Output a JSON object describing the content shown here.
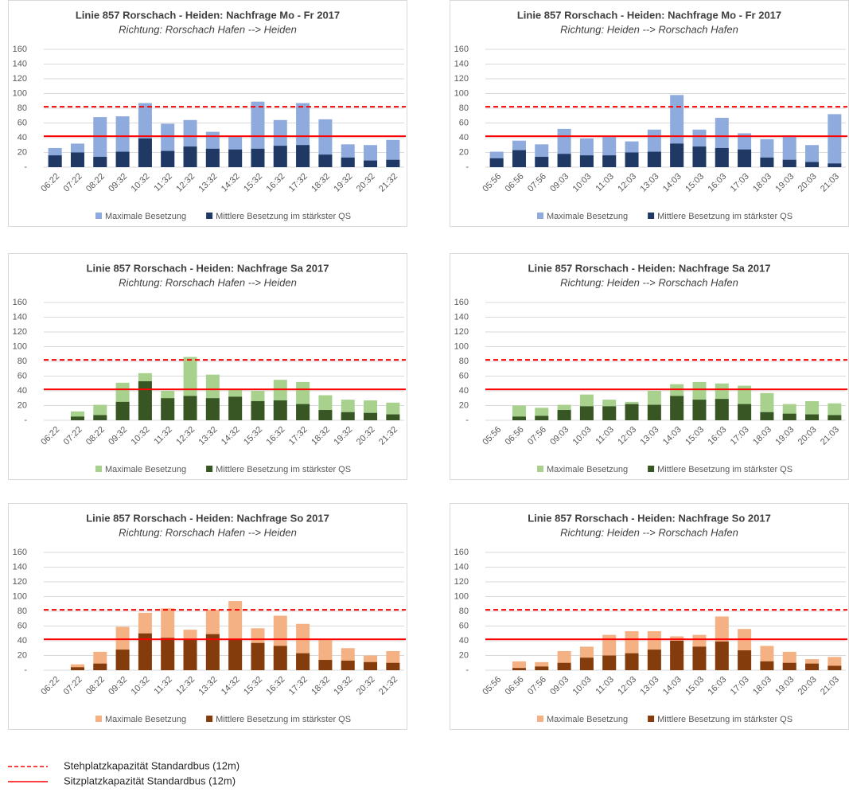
{
  "chart_data": [
    {
      "type": "bar",
      "title": "Linie 857 Rorschach - Heiden: Nachfrage Mo - Fr 2017",
      "subtitle": "Richtung: Rorschach Hafen --> Heiden",
      "categories": [
        "06:22",
        "07:22",
        "08:22",
        "09:32",
        "10:32",
        "11:32",
        "12:32",
        "13:32",
        "14:32",
        "15:32",
        "16:32",
        "17:32",
        "18:32",
        "19:32",
        "20:32",
        "21:32"
      ],
      "series": [
        {
          "name": "Maximale Besetzung",
          "color": "#8faadc",
          "values": [
            26,
            32,
            68,
            69,
            87,
            59,
            64,
            48,
            41,
            89,
            64,
            87,
            65,
            31,
            30,
            37
          ]
        },
        {
          "name": "Mittlere Besetzung im stärkster QS",
          "color": "#1f3864",
          "values": [
            16,
            20,
            14,
            21,
            39,
            22,
            28,
            25,
            24,
            25,
            29,
            30,
            17,
            13,
            9,
            10
          ]
        }
      ],
      "ylim": [
        0,
        160
      ],
      "yticks": [
        {
          "value": 0,
          "label": "-"
        },
        20,
        40,
        60,
        80,
        100,
        120,
        140,
        160
      ],
      "grid": true
    },
    {
      "type": "bar",
      "title": "Linie 857 Rorschach - Heiden: Nachfrage Mo - Fr 2017",
      "subtitle": "Richtung: Heiden --> Rorschach Hafen",
      "categories": [
        "05:56",
        "06:56",
        "07:56",
        "09:03",
        "10:03",
        "11:03",
        "12:03",
        "13:03",
        "14:03",
        "15:03",
        "16:03",
        "17:03",
        "18:03",
        "19:03",
        "20:03",
        "21:03"
      ],
      "series": [
        {
          "name": "Maximale Besetzung",
          "color": "#8faadc",
          "values": [
            21,
            36,
            31,
            52,
            39,
            41,
            35,
            51,
            98,
            51,
            67,
            46,
            38,
            43,
            30,
            72
          ]
        },
        {
          "name": "Mittlere Besetzung im stärkster QS",
          "color": "#1f3864",
          "values": [
            12,
            23,
            14,
            18,
            16,
            16,
            20,
            21,
            32,
            28,
            26,
            24,
            13,
            10,
            7,
            5
          ]
        }
      ],
      "ylim": [
        0,
        160
      ],
      "yticks": [
        {
          "value": 0,
          "label": "-"
        },
        20,
        40,
        60,
        80,
        100,
        120,
        140,
        160
      ],
      "grid": true
    },
    {
      "type": "bar",
      "title": "Linie 857 Rorschach - Heiden: Nachfrage Sa 2017",
      "subtitle": "Richtung: Rorschach Hafen --> Heiden",
      "categories": [
        "06:22",
        "07:22",
        "08:22",
        "09:32",
        "10:32",
        "11:32",
        "12:32",
        "13:32",
        "14:32",
        "15:32",
        "16:32",
        "17:32",
        "18:32",
        "19:32",
        "20:32",
        "21:32"
      ],
      "series": [
        {
          "name": "Maximale Besetzung",
          "color": "#a9d18e",
          "values": [
            null,
            12,
            21,
            51,
            64,
            40,
            86,
            62,
            42,
            40,
            55,
            52,
            34,
            28,
            27,
            24
          ]
        },
        {
          "name": "Mittlere Besetzung im stärkster QS",
          "color": "#375623",
          "values": [
            null,
            5,
            7,
            25,
            53,
            30,
            33,
            30,
            32,
            26,
            27,
            22,
            14,
            11,
            10,
            8
          ]
        }
      ],
      "ylim": [
        0,
        160
      ],
      "yticks": [
        {
          "value": 0,
          "label": "-"
        },
        20,
        40,
        60,
        80,
        100,
        120,
        140,
        160
      ],
      "grid": true
    },
    {
      "type": "bar",
      "title": "Linie 857 Rorschach - Heiden: Nachfrage Sa 2017",
      "subtitle": "Richtung: Heiden --> Rorschach Hafen",
      "categories": [
        "05:56",
        "06:56",
        "07:56",
        "09:03",
        "10:03",
        "11:03",
        "12:03",
        "13:03",
        "14:03",
        "15:03",
        "16:03",
        "17:03",
        "18:03",
        "19:03",
        "20:03",
        "21:03"
      ],
      "series": [
        {
          "name": "Maximale Besetzung",
          "color": "#a9d18e",
          "values": [
            null,
            20,
            17,
            21,
            35,
            28,
            25,
            40,
            49,
            52,
            50,
            47,
            37,
            22,
            26,
            23
          ]
        },
        {
          "name": "Mittlere Besetzung im stärkster QS",
          "color": "#375623",
          "values": [
            null,
            5,
            6,
            14,
            19,
            19,
            22,
            21,
            33,
            28,
            29,
            22,
            11,
            9,
            8,
            7
          ]
        }
      ],
      "ylim": [
        0,
        160
      ],
      "yticks": [
        {
          "value": 0,
          "label": "-"
        },
        20,
        40,
        60,
        80,
        100,
        120,
        140,
        160
      ],
      "grid": true
    },
    {
      "type": "bar",
      "title": "Linie 857 Rorschach - Heiden: Nachfrage So 2017",
      "subtitle": "Richtung: Rorschach Hafen --> Heiden",
      "categories": [
        "06:22",
        "07:22",
        "08:22",
        "09:32",
        "10:32",
        "11:32",
        "12:32",
        "13:32",
        "14:32",
        "15:32",
        "16:32",
        "17:32",
        "18:32",
        "19:32",
        "20:32",
        "21:32"
      ],
      "series": [
        {
          "name": "Maximale Besetzung",
          "color": "#f4b183",
          "values": [
            null,
            8,
            25,
            59,
            78,
            84,
            55,
            82,
            94,
            57,
            74,
            63,
            42,
            30,
            20,
            26
          ]
        },
        {
          "name": "Mittlere Besetzung im stärkster QS",
          "color": "#843c0c",
          "values": [
            null,
            4,
            9,
            28,
            50,
            44,
            42,
            49,
            42,
            37,
            33,
            23,
            14,
            13,
            11,
            10
          ]
        }
      ],
      "ylim": [
        0,
        160
      ],
      "yticks": [
        {
          "value": 0,
          "label": "-"
        },
        20,
        40,
        60,
        80,
        100,
        120,
        140,
        160
      ],
      "grid": true
    },
    {
      "type": "bar",
      "title": "Linie 857 Rorschach - Heiden: Nachfrage So 2017",
      "subtitle": "Richtung: Heiden --> Rorschach Hafen",
      "categories": [
        "05:56",
        "06:56",
        "07:56",
        "09:03",
        "10:03",
        "11:03",
        "12:03",
        "13:03",
        "14:03",
        "15:03",
        "16:03",
        "17:03",
        "18:03",
        "19:03",
        "20:03",
        "21:03"
      ],
      "series": [
        {
          "name": "Maximale Besetzung",
          "color": "#f4b183",
          "values": [
            null,
            12,
            11,
            26,
            32,
            48,
            53,
            53,
            46,
            48,
            73,
            56,
            33,
            25,
            15,
            18
          ]
        },
        {
          "name": "Mittlere Besetzung im stärkster QS",
          "color": "#843c0c",
          "values": [
            null,
            3,
            5,
            10,
            17,
            20,
            23,
            28,
            40,
            32,
            39,
            27,
            12,
            10,
            9,
            6
          ]
        }
      ],
      "ylim": [
        0,
        160
      ],
      "yticks": [
        {
          "value": 0,
          "label": "-"
        },
        20,
        40,
        60,
        80,
        100,
        120,
        140,
        160
      ],
      "grid": true
    }
  ],
  "reference_lines": [
    {
      "name": "Stehplatzkapazität Standardbus (12m)",
      "value": 82,
      "style": "dashed",
      "color": "#ff0000"
    },
    {
      "name": "Sitzplatzkapazität Standardbus (12m)",
      "value": 42,
      "style": "solid",
      "color": "#ff0000"
    }
  ]
}
